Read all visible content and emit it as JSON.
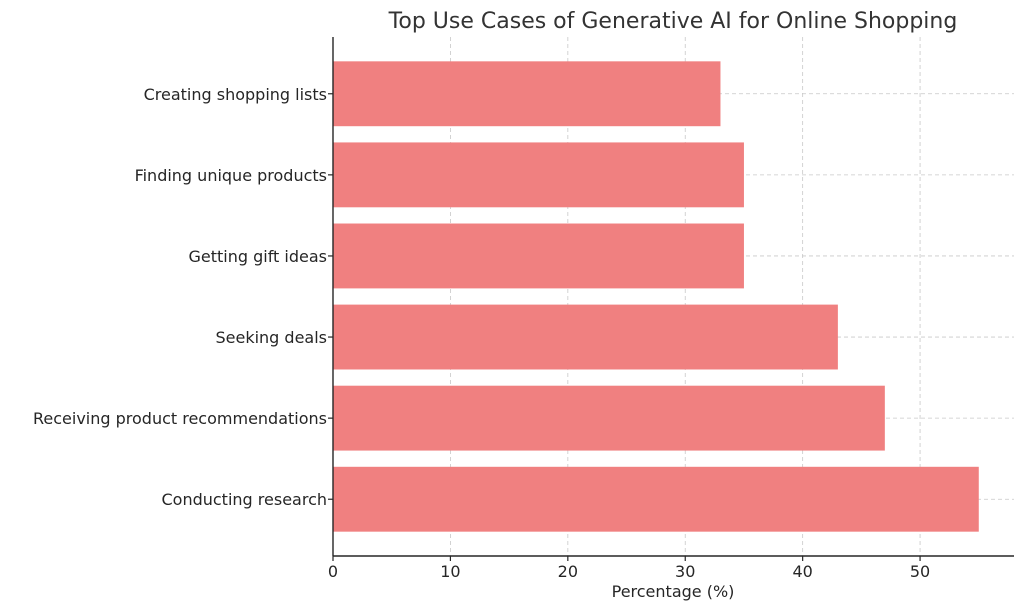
{
  "chart_data": {
    "type": "bar",
    "orientation": "horizontal",
    "title": "Top Use Cases of Generative AI for Online Shopping",
    "xlabel": "Percentage (%)",
    "ylabel": "",
    "categories": [
      "Creating shopping lists",
      "Finding unique products",
      "Getting gift ideas",
      "Seeking deals",
      "Receiving product recommendations",
      "Conducting research"
    ],
    "values": [
      33,
      35,
      35,
      43,
      47,
      55
    ],
    "xlim": [
      0,
      58
    ],
    "xticks": [
      0,
      10,
      20,
      30,
      40,
      50
    ],
    "grid": true,
    "bar_color": "#f08080"
  }
}
